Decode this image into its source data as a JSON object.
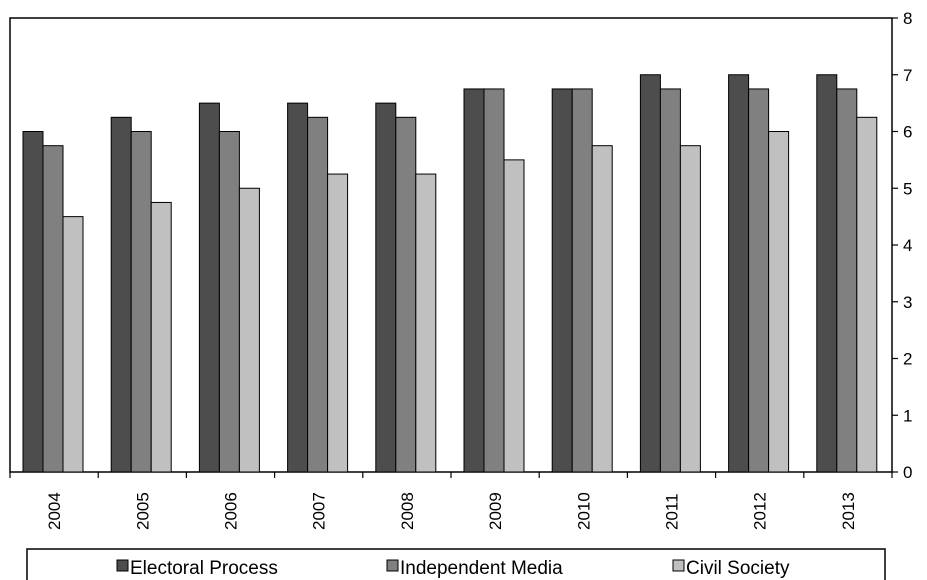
{
  "chart_data": {
    "type": "bar",
    "categories": [
      "2004",
      "2005",
      "2006",
      "2007",
      "2008",
      "2009",
      "2010",
      "2011",
      "2012",
      "2013"
    ],
    "series": [
      {
        "name": "Electoral Process",
        "color": "#4d4d4d",
        "values": [
          6.0,
          6.25,
          6.5,
          6.5,
          6.5,
          6.75,
          6.75,
          7.0,
          7.0,
          7.0
        ]
      },
      {
        "name": "Independent Media",
        "color": "#808080",
        "values": [
          5.75,
          6.0,
          6.0,
          6.25,
          6.25,
          6.75,
          6.75,
          6.75,
          6.75,
          6.75
        ]
      },
      {
        "name": "Civil Society",
        "color": "#c0c0c0",
        "values": [
          4.5,
          4.75,
          5.0,
          5.25,
          5.25,
          5.5,
          5.75,
          5.75,
          6.0,
          6.25
        ]
      }
    ],
    "y_ticks": [
      "0",
      "1",
      "2",
      "3",
      "4",
      "5",
      "6",
      "7",
      "8"
    ],
    "ylim": [
      0,
      8
    ],
    "y_axis_position": "right",
    "x_tick_rotation": "vertical",
    "grid": false,
    "legend_position": "bottom"
  }
}
